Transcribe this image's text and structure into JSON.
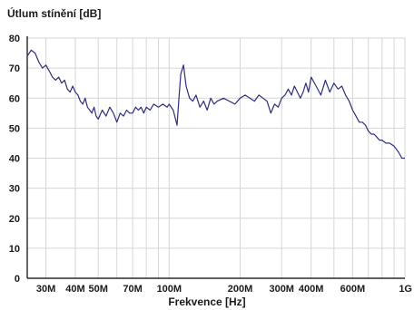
{
  "chart_data": {
    "type": "line",
    "ylabel": "Útlum stínění [dB]",
    "xlabel": "Frekvence [Hz]",
    "x_scale": "log",
    "xlim": [
      25,
      1000
    ],
    "ylim": [
      0,
      80
    ],
    "yticks": [
      0,
      10,
      20,
      30,
      40,
      50,
      60,
      70,
      80
    ],
    "xticks": [
      {
        "value": 30,
        "label": "30M"
      },
      {
        "value": 40,
        "label": "40M"
      },
      {
        "value": 50,
        "label": "50M"
      },
      {
        "value": 70,
        "label": "70M"
      },
      {
        "value": 100,
        "label": "100M"
      },
      {
        "value": 200,
        "label": "200M"
      },
      {
        "value": 300,
        "label": "300M"
      },
      {
        "value": 400,
        "label": "400M"
      },
      {
        "value": 600,
        "label": "600M"
      },
      {
        "value": 1000,
        "label": "1G"
      }
    ],
    "grid_x": [
      30,
      40,
      50,
      60,
      70,
      80,
      90,
      100,
      200,
      300,
      400,
      500,
      600,
      700,
      800,
      900
    ],
    "grid": true,
    "line_color": "#2e2e7a",
    "series": [
      {
        "x": [
          25,
          26,
          27,
          28,
          29,
          30,
          31,
          32,
          33,
          34,
          35,
          36,
          37,
          38,
          39,
          40,
          41,
          42,
          43,
          44,
          45,
          46,
          47,
          48,
          49,
          50,
          52,
          54,
          56,
          58,
          60,
          62,
          64,
          66,
          68,
          70,
          72,
          74,
          76,
          78,
          80,
          83,
          86,
          90,
          94,
          98,
          100,
          104,
          108,
          110,
          112,
          115,
          118,
          122,
          126,
          130,
          135,
          140,
          145,
          150,
          155,
          160,
          170,
          180,
          190,
          200,
          210,
          220,
          230,
          240,
          250,
          260,
          270,
          280,
          290,
          300,
          310,
          320,
          330,
          340,
          350,
          360,
          370,
          380,
          390,
          400,
          420,
          440,
          460,
          480,
          500,
          520,
          540,
          560,
          580,
          600,
          620,
          640,
          660,
          680,
          700,
          720,
          740,
          760,
          780,
          800,
          830,
          860,
          900,
          940,
          970,
          1000
        ],
        "y": [
          74,
          76,
          75,
          72,
          70,
          71,
          69,
          67,
          66,
          67,
          65,
          66,
          63,
          62,
          64,
          62,
          61,
          59,
          58,
          60,
          57,
          56,
          55,
          57,
          54,
          53,
          56,
          54,
          57,
          55,
          52,
          55,
          54,
          56,
          55,
          55,
          57,
          56,
          57,
          55,
          57,
          56,
          58,
          57,
          58,
          57,
          58,
          56,
          51,
          60,
          68,
          71,
          64,
          60,
          59,
          61,
          57,
          59,
          56,
          60,
          58,
          59,
          60,
          59,
          58,
          60,
          61,
          60,
          59,
          61,
          60,
          59,
          55,
          58,
          57,
          60,
          61,
          63,
          61,
          64,
          62,
          60,
          62,
          65,
          62,
          67,
          64,
          61,
          66,
          62,
          65,
          63,
          64,
          61,
          59,
          56,
          54,
          52,
          52,
          51,
          49,
          48,
          48,
          47,
          46,
          46,
          45,
          45,
          44,
          42,
          40,
          40
        ]
      }
    ]
  }
}
